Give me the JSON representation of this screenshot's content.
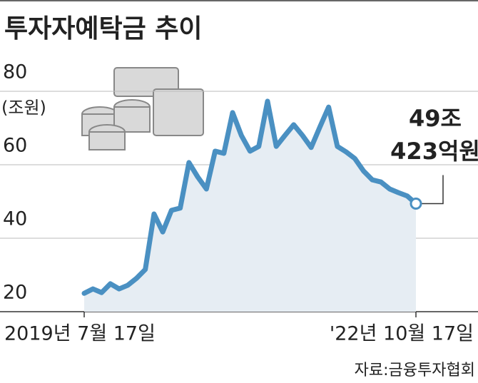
{
  "chart_data": {
    "type": "line",
    "title": "투자자예탁금 추이",
    "y_unit": "(조원)",
    "categories": [
      "2019년 7월 17일",
      null,
      null,
      null,
      null,
      null,
      null,
      null,
      null,
      null,
      null,
      null,
      null,
      null,
      null,
      null,
      null,
      null,
      null,
      null,
      null,
      null,
      null,
      null,
      null,
      null,
      null,
      null,
      null,
      null,
      null,
      null,
      null,
      null,
      null,
      null,
      null,
      null,
      "'22년 10월 17일"
    ],
    "series": [
      {
        "name": "투자자예탁금",
        "color": "#4a90c2",
        "values": [
          25.0,
          26.2,
          25.2,
          27.6,
          26.2,
          27.2,
          29.1,
          31.5,
          46.6,
          41.7,
          47.6,
          48.2,
          60.6,
          56.7,
          53.4,
          63.7,
          63.1,
          74.2,
          68.0,
          63.7,
          65.0,
          77.3,
          65.0,
          68.0,
          70.9,
          68.0,
          64.7,
          70.3,
          75.7,
          65.0,
          63.5,
          61.7,
          58.3,
          55.9,
          55.3,
          53.4,
          52.4,
          51.5,
          49.423
        ]
      }
    ],
    "annotation": [
      "49조",
      "423억원"
    ],
    "source": "자료:금융투자협회",
    "ylim": [
      20,
      80
    ],
    "yticks": [
      20,
      40,
      60,
      80
    ],
    "grid": true
  }
}
